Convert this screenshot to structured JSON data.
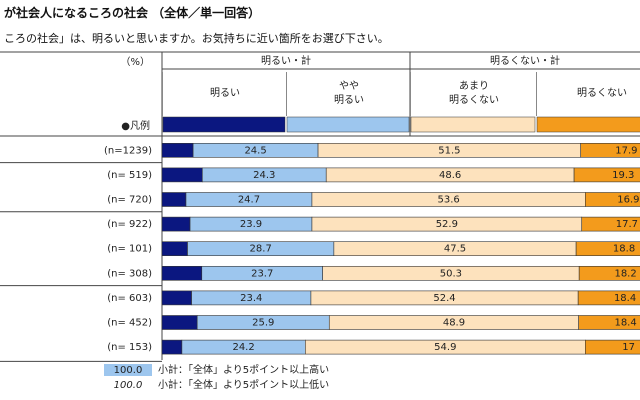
{
  "header": {
    "title": "が社会人になるころの社会 （全体／単一回答）",
    "question": "ころの社会」は、明るいと思いますか。お気持ちに近い箇所をお選び下さい。"
  },
  "chart_data": {
    "type": "bar",
    "orientation": "horizontal",
    "stacked": true,
    "unit_label": "（%）",
    "groups": [
      "明るい・計",
      "明るくない・計"
    ],
    "legend_label": "●凡例",
    "categories": [
      "(n=1239)",
      "(n=  519)",
      "(n=  720)",
      "(n=  922)",
      "(n=  101)",
      "(n=  308)",
      "(n=  603)",
      "(n=  452)",
      "(n=  153)"
    ],
    "xlim": [
      0,
      100
    ],
    "series": [
      {
        "name": "明るい",
        "color": "#0b1780",
        "values": [
          6.1,
          7.9,
          4.7,
          5.5,
          5.0,
          7.8,
          5.8,
          6.9,
          3.9
        ]
      },
      {
        "name": "やや\n明るい",
        "color": "#9dc6ee",
        "values": [
          24.5,
          24.3,
          24.7,
          23.9,
          28.7,
          23.7,
          23.4,
          25.9,
          24.2
        ]
      },
      {
        "name": "あまり\n明るくない",
        "color": "#fde2bd",
        "values": [
          51.5,
          48.6,
          53.6,
          52.9,
          47.5,
          50.3,
          52.4,
          48.9,
          54.9
        ]
      },
      {
        "name": "明るくない",
        "color": "#f39b1c",
        "values": [
          17.9,
          19.3,
          16.9,
          17.7,
          18.8,
          18.2,
          18.4,
          18.4,
          17.0
        ]
      }
    ],
    "notes": [
      {
        "sample": "100.0",
        "text": "小計：「全体」より5ポイント以上高い"
      },
      {
        "sample": "100.0",
        "text": "小計：「全体」より5ポイント以上低い"
      }
    ]
  }
}
